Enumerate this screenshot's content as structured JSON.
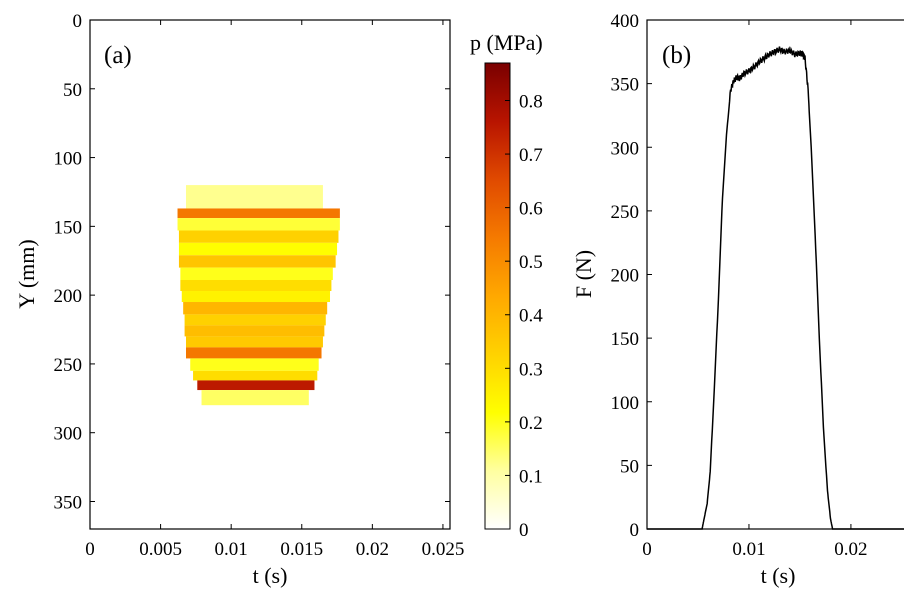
{
  "chart_data": [
    {
      "type": "heatmap",
      "panel_label": "(a)",
      "xlabel": "t (s)",
      "ylabel": "Y (mm)",
      "xlim": [
        0,
        0.0255
      ],
      "ylim": [
        370,
        0
      ],
      "x_ticks": [
        0,
        0.005,
        0.01,
        0.015,
        0.02,
        0.025
      ],
      "x_tick_labels": [
        "0",
        "0.005",
        "0.01",
        "0.015",
        "0.02",
        "0.025"
      ],
      "y_ticks": [
        0,
        50,
        100,
        150,
        200,
        250,
        300,
        350
      ],
      "y_tick_labels": [
        "0",
        "50",
        "100",
        "150",
        "200",
        "250",
        "300",
        "350"
      ],
      "colorbar": {
        "title": "p (MPa)",
        "range": [
          0,
          0.87
        ],
        "ticks": [
          0,
          0.1,
          0.2,
          0.3,
          0.4,
          0.5,
          0.6,
          0.7,
          0.8
        ],
        "tick_labels": [
          "0",
          "0.1",
          "0.2",
          "0.3",
          "0.4",
          "0.5",
          "0.6",
          "0.7",
          "0.8"
        ],
        "colors": [
          "#ffffff",
          "#ffffa0",
          "#ffff00",
          "#ffd200",
          "#ffa800",
          "#f57a00",
          "#e04a00",
          "#b81400",
          "#7a0000"
        ]
      },
      "rows": [
        {
          "y0": 120,
          "y1": 137,
          "t_start": 0.0068,
          "t_end": 0.0165,
          "p": 0.12
        },
        {
          "y0": 137,
          "y1": 144,
          "t_start": 0.0062,
          "t_end": 0.0177,
          "p": 0.55
        },
        {
          "y0": 144,
          "y1": 153,
          "t_start": 0.0062,
          "t_end": 0.0177,
          "p": 0.18
        },
        {
          "y0": 153,
          "y1": 162,
          "t_start": 0.0063,
          "t_end": 0.0176,
          "p": 0.33
        },
        {
          "y0": 162,
          "y1": 171,
          "t_start": 0.0063,
          "t_end": 0.0175,
          "p": 0.22
        },
        {
          "y0": 171,
          "y1": 180,
          "t_start": 0.0063,
          "t_end": 0.0174,
          "p": 0.36
        },
        {
          "y0": 180,
          "y1": 189,
          "t_start": 0.0064,
          "t_end": 0.0172,
          "p": 0.2
        },
        {
          "y0": 189,
          "y1": 197,
          "t_start": 0.0064,
          "t_end": 0.0171,
          "p": 0.3
        },
        {
          "y0": 197,
          "y1": 205,
          "t_start": 0.0065,
          "t_end": 0.017,
          "p": 0.25
        },
        {
          "y0": 205,
          "y1": 214,
          "t_start": 0.0066,
          "t_end": 0.0168,
          "p": 0.4
        },
        {
          "y0": 214,
          "y1": 222,
          "t_start": 0.0067,
          "t_end": 0.0167,
          "p": 0.33
        },
        {
          "y0": 222,
          "y1": 230,
          "t_start": 0.0067,
          "t_end": 0.0166,
          "p": 0.38
        },
        {
          "y0": 230,
          "y1": 238,
          "t_start": 0.0068,
          "t_end": 0.0165,
          "p": 0.35
        },
        {
          "y0": 238,
          "y1": 246,
          "t_start": 0.0068,
          "t_end": 0.0164,
          "p": 0.55
        },
        {
          "y0": 246,
          "y1": 255,
          "t_start": 0.0071,
          "t_end": 0.0162,
          "p": 0.2
        },
        {
          "y0": 255,
          "y1": 262,
          "t_start": 0.0073,
          "t_end": 0.0161,
          "p": 0.3
        },
        {
          "y0": 262,
          "y1": 269,
          "t_start": 0.0076,
          "t_end": 0.0159,
          "p": 0.75
        },
        {
          "y0": 269,
          "y1": 280,
          "t_start": 0.0079,
          "t_end": 0.0155,
          "p": 0.15
        }
      ]
    },
    {
      "type": "line",
      "panel_label": "(b)",
      "xlabel": "t (s)",
      "ylabel": "F (N)",
      "xlim": [
        0,
        0.0255
      ],
      "ylim": [
        0,
        400
      ],
      "x_ticks": [
        0,
        0.01,
        0.02
      ],
      "x_tick_labels": [
        "0",
        "0.01",
        "0.02"
      ],
      "y_ticks": [
        0,
        50,
        100,
        150,
        200,
        250,
        300,
        350,
        400
      ],
      "y_tick_labels": [
        "0",
        "50",
        "100",
        "150",
        "200",
        "250",
        "300",
        "350",
        "400"
      ],
      "x": [
        0,
        0.0054,
        0.0056,
        0.0059,
        0.0062,
        0.0066,
        0.007,
        0.0074,
        0.0078,
        0.0082,
        0.0085,
        0.0088,
        0.0091,
        0.0095,
        0.01,
        0.0105,
        0.011,
        0.0115,
        0.012,
        0.0125,
        0.013,
        0.0135,
        0.014,
        0.0145,
        0.015,
        0.0153,
        0.0155,
        0.0158,
        0.0161,
        0.0165,
        0.0169,
        0.0173,
        0.0177,
        0.018,
        0.0182,
        0.0185,
        0.0255
      ],
      "y": [
        0,
        0,
        8,
        20,
        45,
        110,
        180,
        260,
        310,
        345,
        352,
        355,
        354,
        358,
        360,
        363,
        367,
        370,
        373,
        375,
        377,
        375,
        376,
        373,
        374,
        373,
        370,
        345,
        300,
        230,
        150,
        80,
        30,
        8,
        0,
        0,
        0
      ],
      "line_color": "#000000"
    }
  ]
}
